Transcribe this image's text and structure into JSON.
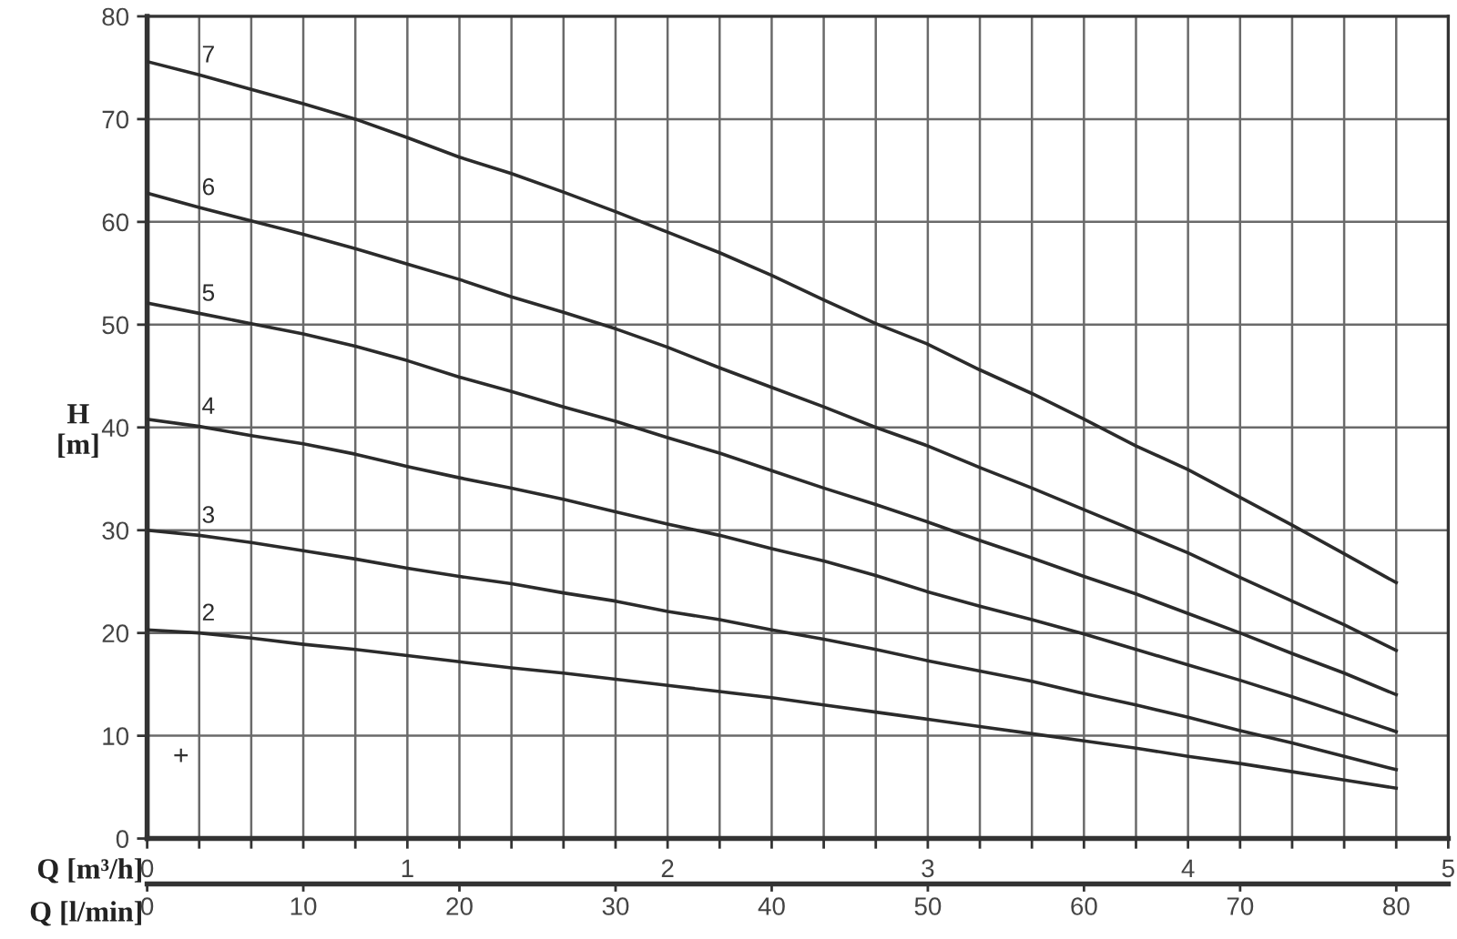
{
  "chart_data": {
    "type": "line",
    "xlabel": "Q [m³/h]",
    "x2label": "Q [l/min]",
    "ylabel": "H\n[m]",
    "xlim": [
      0,
      5
    ],
    "xticks": [
      0,
      {
        "value": 0.2,
        "label": null
      },
      {
        "value": 0.4,
        "label": null
      },
      {
        "value": 0.6,
        "label": null
      },
      {
        "value": 0.8,
        "label": null
      },
      1,
      {
        "value": 1.2,
        "label": null
      },
      {
        "value": 1.4,
        "label": null
      },
      {
        "value": 1.6,
        "label": null
      },
      {
        "value": 1.8,
        "label": null
      },
      2,
      {
        "value": 2.2,
        "label": null
      },
      {
        "value": 2.4,
        "label": null
      },
      {
        "value": 2.6,
        "label": null
      },
      {
        "value": 2.8,
        "label": null
      },
      3,
      {
        "value": 3.2,
        "label": null
      },
      {
        "value": 3.4,
        "label": null
      },
      {
        "value": 3.6,
        "label": null
      },
      {
        "value": 3.8,
        "label": null
      },
      4,
      {
        "value": 4.2,
        "label": null
      },
      {
        "value": 4.4,
        "label": null
      },
      {
        "value": 4.6,
        "label": null
      },
      {
        "value": 4.8,
        "label": null
      },
      5
    ],
    "x2lim": [
      0,
      83.33
    ],
    "x2ticks": [
      0,
      10,
      20,
      30,
      40,
      50,
      60,
      70,
      80
    ],
    "ylim": [
      0,
      80
    ],
    "yticks": [
      0,
      10,
      20,
      30,
      40,
      50,
      60,
      70,
      80
    ],
    "grid": true,
    "x": [
      0,
      0.2,
      0.4,
      0.6,
      0.8,
      1.0,
      1.2,
      1.4,
      1.6,
      1.8,
      2.0,
      2.2,
      2.4,
      2.6,
      2.8,
      3.0,
      3.2,
      3.4,
      3.6,
      3.8,
      4.0,
      4.2,
      4.4,
      4.6,
      4.8
    ],
    "series": [
      {
        "name": "2",
        "color": "#2b2b2b",
        "values": [
          20.3,
          20.0,
          19.5,
          18.9,
          18.4,
          17.8,
          17.2,
          16.6,
          16.1,
          15.5,
          14.9,
          14.3,
          13.7,
          13.0,
          12.3,
          11.6,
          10.9,
          10.2,
          9.5,
          8.8,
          8.0,
          7.3,
          6.5,
          5.7,
          4.9
        ]
      },
      {
        "name": "3",
        "color": "#2b2b2b",
        "values": [
          30.0,
          29.5,
          28.8,
          28.0,
          27.2,
          26.3,
          25.5,
          24.8,
          23.9,
          23.1,
          22.1,
          21.3,
          20.3,
          19.4,
          18.4,
          17.3,
          16.3,
          15.3,
          14.1,
          13.0,
          11.8,
          10.5,
          9.3,
          8.0,
          6.7
        ]
      },
      {
        "name": "4",
        "color": "#2b2b2b",
        "values": [
          40.8,
          40.1,
          39.2,
          38.4,
          37.4,
          36.2,
          35.1,
          34.1,
          33.0,
          31.8,
          30.6,
          29.5,
          28.2,
          27.0,
          25.6,
          24.0,
          22.6,
          21.3,
          19.9,
          18.4,
          16.9,
          15.4,
          13.8,
          12.1,
          10.4
        ]
      },
      {
        "name": "5",
        "color": "#2b2b2b",
        "values": [
          52.1,
          51.1,
          50.1,
          49.1,
          47.9,
          46.5,
          44.9,
          43.5,
          42.0,
          40.6,
          39.0,
          37.5,
          35.8,
          34.1,
          32.5,
          30.8,
          29.0,
          27.3,
          25.5,
          23.8,
          21.9,
          20.0,
          18.0,
          16.1,
          14.0
        ]
      },
      {
        "name": "6",
        "color": "#2b2b2b",
        "values": [
          62.8,
          61.4,
          60.1,
          58.8,
          57.4,
          55.9,
          54.4,
          52.7,
          51.2,
          49.6,
          47.8,
          45.8,
          43.9,
          42.0,
          40.0,
          38.2,
          36.1,
          34.1,
          32.0,
          29.9,
          27.8,
          25.4,
          23.1,
          20.8,
          18.3
        ]
      },
      {
        "name": "7",
        "color": "#2b2b2b",
        "values": [
          75.6,
          74.3,
          72.9,
          71.5,
          70.0,
          68.2,
          66.3,
          64.7,
          62.9,
          61.0,
          59.0,
          57.0,
          54.8,
          52.4,
          50.1,
          48.1,
          45.6,
          43.3,
          40.8,
          38.2,
          35.9,
          33.2,
          30.5,
          27.7,
          24.9
        ]
      },
      {
        "type": "scatter",
        "marker": "cross",
        "color": "#333333",
        "x": [
          0.13
        ],
        "values": [
          8.1
        ]
      }
    ]
  }
}
